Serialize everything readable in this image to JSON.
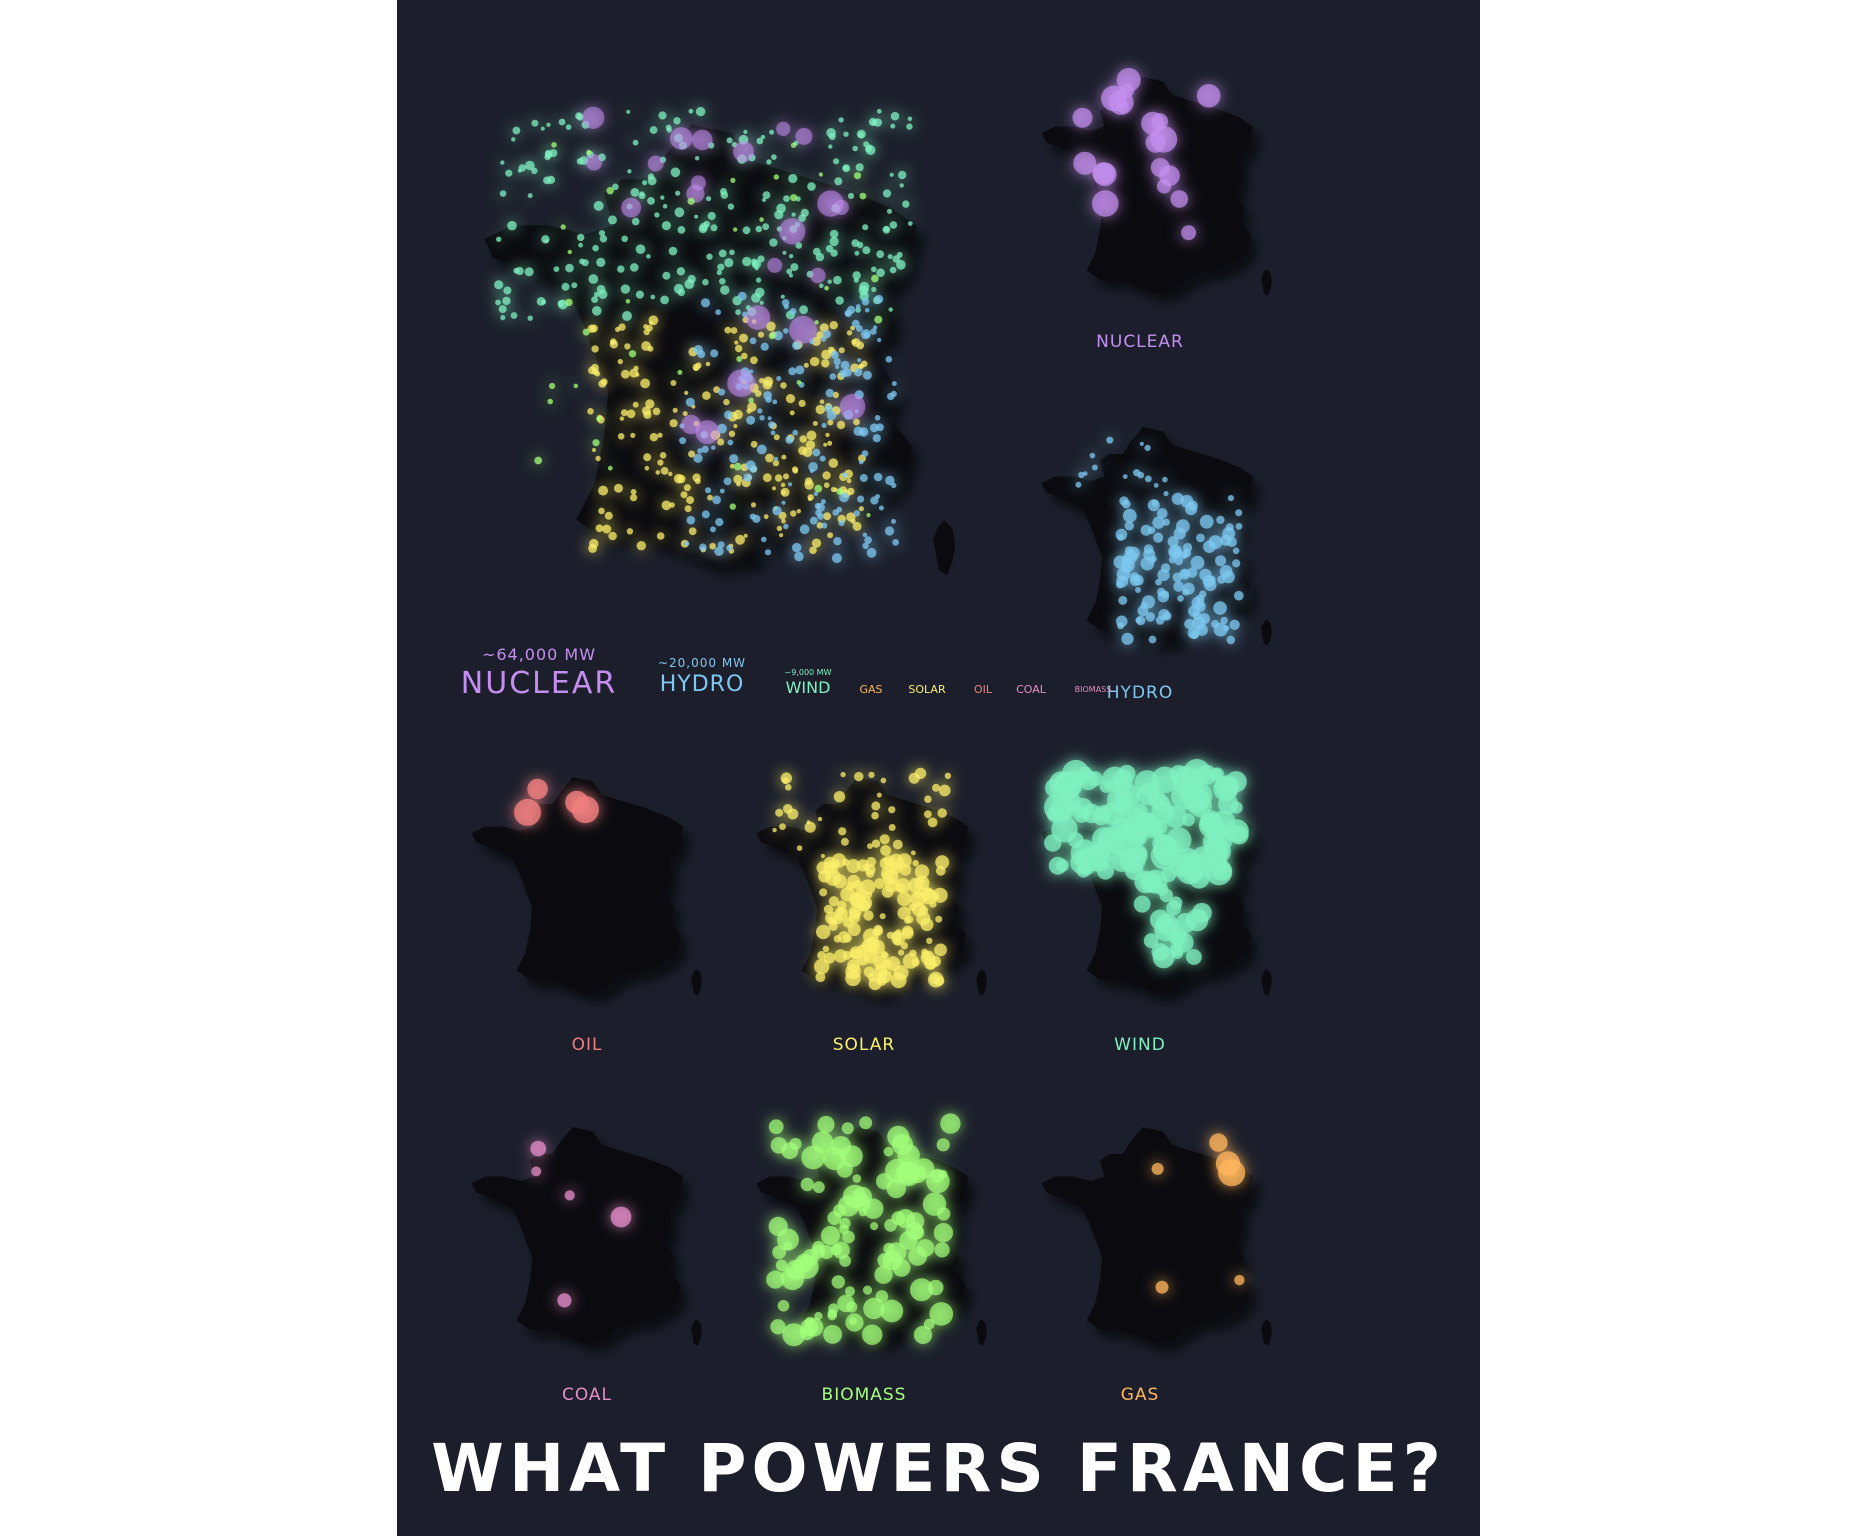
{
  "title": "WHAT POWERS FRANCE?",
  "colors": {
    "background": "#1c1f2b",
    "land": "#0b0b0f",
    "nuclear": "#c48ef0",
    "hydro": "#7ec8f2",
    "wind": "#7ff0c0",
    "solar": "#fbee6a",
    "oil": "#f07f7f",
    "coal": "#e58dc9",
    "biomass": "#a3ff7a",
    "gas": "#ffb65c"
  },
  "legend": {
    "nuclear": {
      "label": "NUCLEAR",
      "capacity": "~64,000 MW"
    },
    "hydro": {
      "label": "HYDRO",
      "capacity": "~20,000 MW"
    },
    "wind": {
      "label": "WIND",
      "capacity": "~9,000 MW"
    },
    "gas": {
      "label": "GAS"
    },
    "solar": {
      "label": "SOLAR"
    },
    "oil": {
      "label": "OIL"
    },
    "coal": {
      "label": "COAL"
    },
    "biomass": {
      "label": "BIOMASS"
    }
  },
  "small_maps": {
    "nuclear": "NUCLEAR",
    "hydro": "HYDRO",
    "oil": "OIL",
    "solar": "SOLAR",
    "wind": "WIND",
    "coal": "COAL",
    "biomass": "BIOMASS",
    "gas": "GAS"
  }
}
